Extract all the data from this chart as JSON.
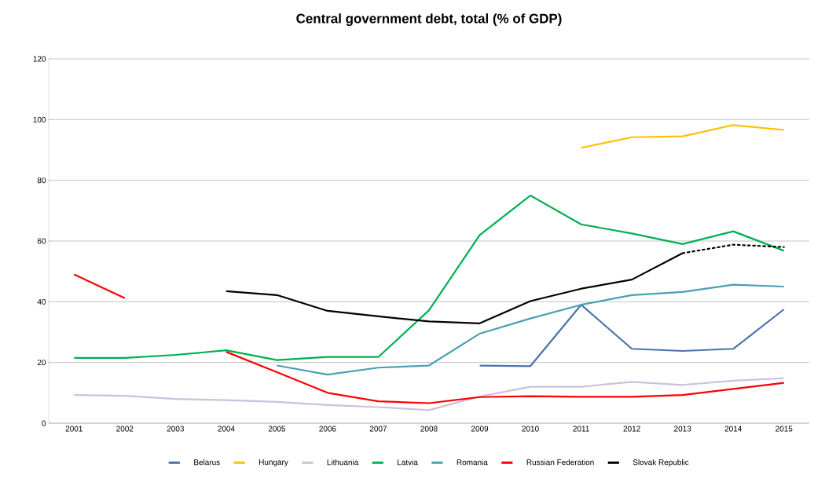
{
  "chart_data": {
    "type": "line",
    "title": "Central government debt, total (% of GDP)",
    "categories": [
      "2001",
      "2002",
      "2003",
      "2004",
      "2005",
      "2006",
      "2007",
      "2008",
      "2009",
      "2010",
      "2011",
      "2012",
      "2013",
      "2014",
      "2015"
    ],
    "series": [
      {
        "name": "Belarus",
        "color": "#4a72a8",
        "values": [
          null,
          null,
          null,
          null,
          null,
          null,
          null,
          null,
          19,
          18.8,
          39,
          24.5,
          23.8,
          24.5,
          37.5
        ]
      },
      {
        "name": "Hungary",
        "color": "#ffc000",
        "values": [
          null,
          null,
          null,
          null,
          null,
          null,
          null,
          null,
          null,
          null,
          90.7,
          94.2,
          94.5,
          98.2,
          96.6
        ]
      },
      {
        "name": "Lithuania",
        "color": "#ccc0da",
        "values": [
          9.3,
          9,
          8,
          7.6,
          7,
          6,
          5.3,
          4.3,
          8.8,
          12,
          12,
          13.6,
          12.6,
          14,
          14.8
        ]
      },
      {
        "name": "Latvia",
        "color": "#00b050",
        "values": [
          21.5,
          21.5,
          22.5,
          24,
          20.8,
          21.8,
          21.8,
          37.2,
          62,
          75,
          65.5,
          62.5,
          59,
          63.2,
          56.8
        ]
      },
      {
        "name": "Romania",
        "color": "#4a9fb5",
        "values": [
          null,
          null,
          null,
          null,
          19,
          16,
          18.3,
          19,
          29.5,
          34.5,
          39,
          42.2,
          43.2,
          45.6,
          45
        ]
      },
      {
        "name": "Russian Federation",
        "color": "#ff0000",
        "values": [
          49,
          41.2,
          null,
          23.5,
          16.8,
          10,
          7.2,
          6.6,
          8.6,
          8.9,
          8.7,
          8.7,
          9.3,
          11.3,
          13.3
        ]
      },
      {
        "name": "Slovak Republic",
        "color": "#000000",
        "values": [
          null,
          null,
          null,
          43.5,
          42.2,
          37,
          35.2,
          33.5,
          32.9,
          40.2,
          44.3,
          47.3,
          56,
          null,
          null
        ]
      },
      {
        "color": "#000000",
        "line_style": "dotted",
        "values": [
          null,
          null,
          null,
          null,
          null,
          null,
          null,
          null,
          null,
          null,
          null,
          null,
          56,
          58.8,
          58
        ]
      }
    ],
    "ylim": [
      0,
      120
    ],
    "yticks": [
      0,
      20,
      40,
      60,
      80,
      100,
      120
    ],
    "grid": "y",
    "legend": "bottom",
    "marker": "none",
    "line_style": "solid"
  }
}
